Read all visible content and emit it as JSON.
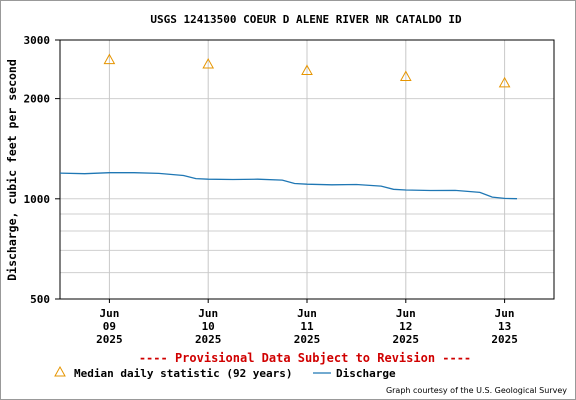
{
  "chart_data": {
    "type": "line",
    "title": "USGS 12413500 COEUR D ALENE RIVER NR CATALDO ID",
    "ylabel": "Discharge, cubic feet per second",
    "xlabel": "",
    "y_scale": "log",
    "ylim": [
      500,
      3000
    ],
    "y_ticks": [
      "3000",
      "2000",
      "1000",
      "500"
    ],
    "x_range": [
      "2025-06-08 12:00",
      "2025-06-13 12:00"
    ],
    "x_ticks": [
      {
        "month": "Jun",
        "day": "09",
        "year": "2025"
      },
      {
        "month": "Jun",
        "day": "10",
        "year": "2025"
      },
      {
        "month": "Jun",
        "day": "11",
        "year": "2025"
      },
      {
        "month": "Jun",
        "day": "12",
        "year": "2025"
      },
      {
        "month": "Jun",
        "day": "13",
        "year": "2025"
      }
    ],
    "grid": true,
    "series": [
      {
        "name": "Discharge",
        "color": "#1f77b4",
        "points": [
          [
            "2025-06-08 12:00",
            1195
          ],
          [
            "2025-06-08 18:00",
            1190
          ],
          [
            "2025-06-09 00:00",
            1198
          ],
          [
            "2025-06-09 06:00",
            1198
          ],
          [
            "2025-06-09 12:00",
            1192
          ],
          [
            "2025-06-09 18:00",
            1175
          ],
          [
            "2025-06-09 21:00",
            1150
          ],
          [
            "2025-06-10 00:00",
            1145
          ],
          [
            "2025-06-10 06:00",
            1143
          ],
          [
            "2025-06-10 12:00",
            1145
          ],
          [
            "2025-06-10 18:00",
            1138
          ],
          [
            "2025-06-10 21:00",
            1112
          ],
          [
            "2025-06-11 00:00",
            1106
          ],
          [
            "2025-06-11 06:00",
            1102
          ],
          [
            "2025-06-11 12:00",
            1104
          ],
          [
            "2025-06-11 18:00",
            1092
          ],
          [
            "2025-06-11 21:00",
            1068
          ],
          [
            "2025-06-12 00:00",
            1063
          ],
          [
            "2025-06-12 06:00",
            1059
          ],
          [
            "2025-06-12 12:00",
            1060
          ],
          [
            "2025-06-12 18:00",
            1045
          ],
          [
            "2025-06-12 21:00",
            1012
          ],
          [
            "2025-06-13 00:00",
            1003
          ],
          [
            "2025-06-13 03:00",
            1001
          ]
        ]
      },
      {
        "name": "Median daily statistic (92 years)",
        "color": "#e69500",
        "marker": "triangle",
        "points": [
          [
            "2025-06-09 00:00",
            2620
          ],
          [
            "2025-06-10 00:00",
            2540
          ],
          [
            "2025-06-11 00:00",
            2430
          ],
          [
            "2025-06-12 00:00",
            2330
          ],
          [
            "2025-06-13 00:00",
            2230
          ]
        ]
      }
    ],
    "legend_position": "bottom"
  },
  "provisional_note": "---- Provisional Data Subject to Revision ----",
  "credit": "Graph courtesy of the U.S. Geological Survey"
}
